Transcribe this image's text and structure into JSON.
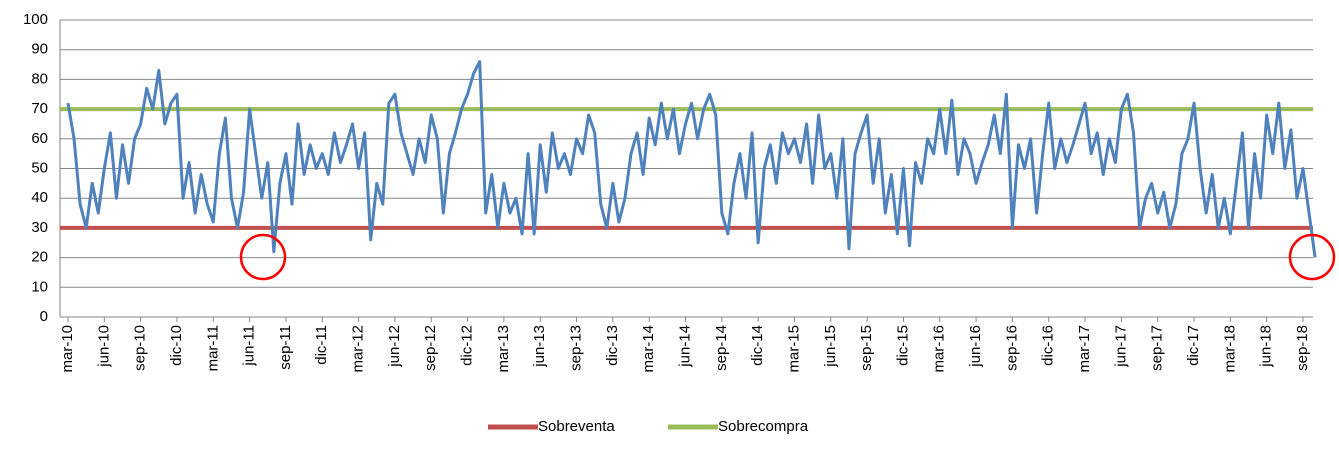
{
  "chart_data": {
    "type": "line",
    "categories": [
      "mar-10",
      null,
      null,
      null,
      null,
      null,
      "jun-10",
      null,
      null,
      null,
      null,
      null,
      "sep-10",
      null,
      null,
      null,
      null,
      null,
      "dic-10",
      null,
      null,
      null,
      null,
      null,
      "mar-11",
      null,
      null,
      null,
      null,
      null,
      "jun-11",
      null,
      null,
      null,
      null,
      null,
      "sep-11",
      null,
      null,
      null,
      null,
      null,
      "dic-11",
      null,
      null,
      null,
      null,
      null,
      "mar-12",
      null,
      null,
      null,
      null,
      null,
      "jun-12",
      null,
      null,
      null,
      null,
      null,
      "sep-12",
      null,
      null,
      null,
      null,
      null,
      "dic-12",
      null,
      null,
      null,
      null,
      null,
      "mar-13",
      null,
      null,
      null,
      null,
      null,
      "jun-13",
      null,
      null,
      null,
      null,
      null,
      "sep-13",
      null,
      null,
      null,
      null,
      null,
      "dic-13",
      null,
      null,
      null,
      null,
      null,
      "mar-14",
      null,
      null,
      null,
      null,
      null,
      "jun-14",
      null,
      null,
      null,
      null,
      null,
      "sep-14",
      null,
      null,
      null,
      null,
      null,
      "dic-14",
      null,
      null,
      null,
      null,
      null,
      "mar-15",
      null,
      null,
      null,
      null,
      null,
      "jun-15",
      null,
      null,
      null,
      null,
      null,
      "sep-15",
      null,
      null,
      null,
      null,
      null,
      "dic-15",
      null,
      null,
      null,
      null,
      null,
      "mar-16",
      null,
      null,
      null,
      null,
      null,
      "jun-16",
      null,
      null,
      null,
      null,
      null,
      "sep-16",
      null,
      null,
      null,
      null,
      null,
      "dic-16",
      null,
      null,
      null,
      null,
      null,
      "mar-17",
      null,
      null,
      null,
      null,
      null,
      "jun-17",
      null,
      null,
      null,
      null,
      null,
      "sep-17",
      null,
      null,
      null,
      null,
      null,
      "dic-17",
      null,
      null,
      null,
      null,
      null,
      "mar-18",
      null,
      null,
      null,
      null,
      null,
      "jun-18",
      null,
      null,
      null,
      null,
      null,
      "sep-18",
      null,
      null
    ],
    "series": [
      {
        "color": "#4f81bd",
        "values": [
          72,
          60,
          38,
          30,
          45,
          35,
          50,
          62,
          40,
          58,
          45,
          60,
          65,
          77,
          70,
          83,
          65,
          72,
          75,
          40,
          52,
          35,
          48,
          38,
          32,
          55,
          67,
          40,
          30,
          42,
          70,
          55,
          40,
          52,
          22,
          45,
          55,
          38,
          65,
          48,
          58,
          50,
          55,
          48,
          62,
          52,
          58,
          65,
          50,
          62,
          26,
          45,
          38,
          72,
          75,
          62,
          55,
          48,
          60,
          52,
          68,
          60,
          35,
          55,
          62,
          70,
          75,
          82,
          86,
          35,
          48,
          30,
          45,
          35,
          40,
          28,
          55,
          28,
          58,
          42,
          62,
          50,
          55,
          48,
          60,
          55,
          68,
          62,
          38,
          30,
          45,
          32,
          40,
          55,
          62,
          48,
          67,
          58,
          72,
          60,
          70,
          55,
          65,
          72,
          60,
          70,
          75,
          68,
          35,
          28,
          45,
          55,
          40,
          62,
          25,
          50,
          58,
          45,
          62,
          55,
          60,
          52,
          65,
          45,
          68,
          50,
          55,
          40,
          60,
          23,
          55,
          62,
          68,
          45,
          60,
          35,
          48,
          28,
          50,
          24,
          52,
          45,
          60,
          55,
          70,
          55,
          73,
          48,
          60,
          55,
          45,
          52,
          58,
          68,
          55,
          75,
          30,
          58,
          50,
          60,
          35,
          55,
          72,
          50,
          60,
          52,
          58,
          65,
          72,
          55,
          62,
          48,
          60,
          52,
          70,
          75,
          62,
          30,
          40,
          45,
          35,
          42,
          30,
          38,
          55,
          60,
          72,
          50,
          35,
          48,
          30,
          40,
          28,
          45,
          62,
          30,
          55,
          40,
          68,
          55,
          72,
          50,
          63,
          40,
          50,
          35,
          20
        ]
      }
    ],
    "hlines": [
      {
        "name": "Sobreventa",
        "color": "#c0504d",
        "value": 30
      },
      {
        "name": "Sobrecompra",
        "color": "#9bbb59",
        "value": 70
      }
    ],
    "ylim": [
      0,
      100
    ],
    "yticks": [
      0,
      10,
      20,
      30,
      40,
      50,
      60,
      70,
      80,
      90,
      100
    ],
    "grid": true,
    "legend": "bottom"
  }
}
